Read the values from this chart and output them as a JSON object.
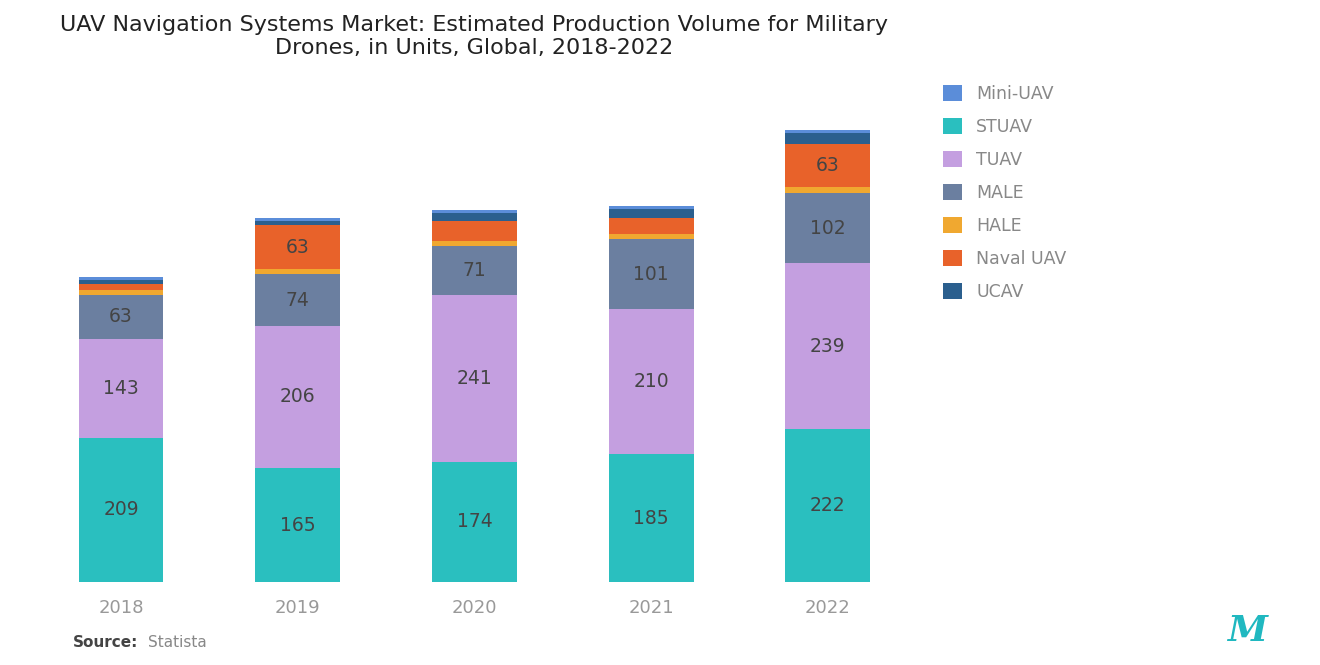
{
  "title": "UAV Navigation Systems Market: Estimated Production Volume for Military\nDrones, in Units, Global, 2018-2022",
  "years": [
    "2018",
    "2019",
    "2020",
    "2021",
    "2022"
  ],
  "layer_order": [
    "STUAV",
    "TUAV",
    "MALE",
    "HALE",
    "Naval UAV",
    "UCAV",
    "Mini-UAV"
  ],
  "legend_order": [
    "Mini-UAV",
    "STUAV",
    "TUAV",
    "MALE",
    "HALE",
    "Naval UAV",
    "UCAV"
  ],
  "colors": {
    "STUAV": "#2ABFBF",
    "TUAV": "#C49FE0",
    "MALE": "#6B7FA0",
    "HALE": "#F0A830",
    "Naval UAV": "#E8622A",
    "UCAV": "#2B5F8E",
    "Mini-UAV": "#5B8DD9"
  },
  "data": {
    "STUAV": [
      209,
      165,
      174,
      185,
      222
    ],
    "TUAV": [
      143,
      206,
      241,
      210,
      239
    ],
    "MALE": [
      63,
      74,
      71,
      101,
      102
    ],
    "HALE": [
      8,
      8,
      8,
      8,
      8
    ],
    "Naval UAV": [
      8,
      63,
      28,
      22,
      63
    ],
    "UCAV": [
      6,
      6,
      12,
      14,
      16
    ],
    "Mini-UAV": [
      4,
      4,
      4,
      4,
      4
    ]
  },
  "labeled_segments": [
    "STUAV",
    "TUAV",
    "MALE"
  ],
  "naval_uav_show_label": [
    false,
    true,
    false,
    false,
    true
  ],
  "label_fontsize": 13.5,
  "tick_fontsize": 13,
  "title_fontsize": 16,
  "legend_fontsize": 12.5,
  "background_color": "#FFFFFF",
  "bar_width": 0.48,
  "text_color": "#444444",
  "axis_color": "#999999"
}
